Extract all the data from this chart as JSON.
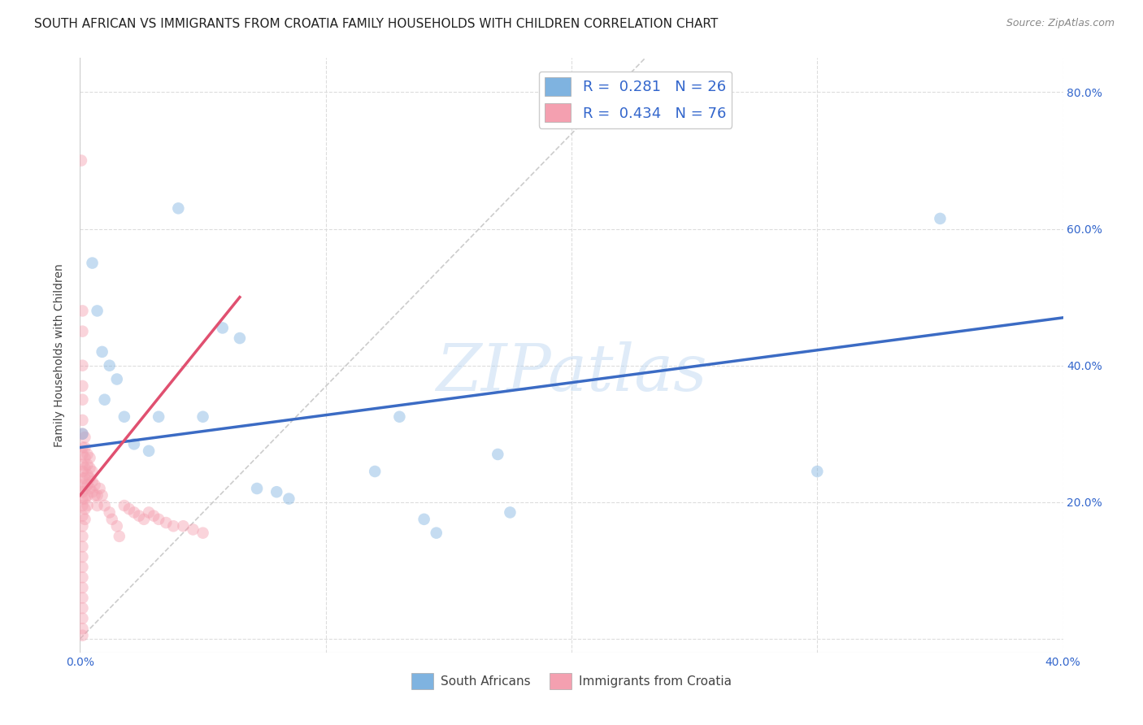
{
  "title": "SOUTH AFRICAN VS IMMIGRANTS FROM CROATIA FAMILY HOUSEHOLDS WITH CHILDREN CORRELATION CHART",
  "source": "Source: ZipAtlas.com",
  "ylabel": "Family Households with Children",
  "x_ticks": [
    0.0,
    0.1,
    0.2,
    0.3,
    0.4
  ],
  "x_tick_labels": [
    "0.0%",
    "",
    "",
    "",
    "40.0%"
  ],
  "y_ticks": [
    0.0,
    0.2,
    0.4,
    0.6,
    0.8
  ],
  "y_tick_labels": [
    "",
    "20.0%",
    "40.0%",
    "60.0%",
    "80.0%"
  ],
  "xlim": [
    0.0,
    0.4
  ],
  "ylim": [
    -0.02,
    0.85
  ],
  "blue_scatter": [
    [
      0.001,
      0.3
    ],
    [
      0.005,
      0.55
    ],
    [
      0.007,
      0.48
    ],
    [
      0.009,
      0.42
    ],
    [
      0.01,
      0.35
    ],
    [
      0.012,
      0.4
    ],
    [
      0.015,
      0.38
    ],
    [
      0.018,
      0.325
    ],
    [
      0.022,
      0.285
    ],
    [
      0.028,
      0.275
    ],
    [
      0.032,
      0.325
    ],
    [
      0.04,
      0.63
    ],
    [
      0.05,
      0.325
    ],
    [
      0.058,
      0.455
    ],
    [
      0.065,
      0.44
    ],
    [
      0.072,
      0.22
    ],
    [
      0.08,
      0.215
    ],
    [
      0.085,
      0.205
    ],
    [
      0.12,
      0.245
    ],
    [
      0.13,
      0.325
    ],
    [
      0.14,
      0.175
    ],
    [
      0.145,
      0.155
    ],
    [
      0.17,
      0.27
    ],
    [
      0.175,
      0.185
    ],
    [
      0.3,
      0.245
    ],
    [
      0.35,
      0.615
    ]
  ],
  "pink_scatter": [
    [
      0.0005,
      0.7
    ],
    [
      0.001,
      0.48
    ],
    [
      0.001,
      0.45
    ],
    [
      0.001,
      0.4
    ],
    [
      0.001,
      0.37
    ],
    [
      0.001,
      0.35
    ],
    [
      0.001,
      0.32
    ],
    [
      0.001,
      0.3
    ],
    [
      0.001,
      0.28
    ],
    [
      0.001,
      0.27
    ],
    [
      0.001,
      0.255
    ],
    [
      0.001,
      0.245
    ],
    [
      0.001,
      0.235
    ],
    [
      0.001,
      0.225
    ],
    [
      0.001,
      0.215
    ],
    [
      0.001,
      0.205
    ],
    [
      0.001,
      0.195
    ],
    [
      0.001,
      0.18
    ],
    [
      0.001,
      0.165
    ],
    [
      0.001,
      0.15
    ],
    [
      0.001,
      0.135
    ],
    [
      0.001,
      0.12
    ],
    [
      0.001,
      0.105
    ],
    [
      0.001,
      0.09
    ],
    [
      0.001,
      0.075
    ],
    [
      0.001,
      0.06
    ],
    [
      0.001,
      0.045
    ],
    [
      0.001,
      0.03
    ],
    [
      0.001,
      0.015
    ],
    [
      0.001,
      0.005
    ],
    [
      0.002,
      0.295
    ],
    [
      0.002,
      0.28
    ],
    [
      0.002,
      0.265
    ],
    [
      0.002,
      0.25
    ],
    [
      0.002,
      0.235
    ],
    [
      0.002,
      0.22
    ],
    [
      0.002,
      0.205
    ],
    [
      0.002,
      0.19
    ],
    [
      0.002,
      0.175
    ],
    [
      0.003,
      0.27
    ],
    [
      0.003,
      0.255
    ],
    [
      0.003,
      0.24
    ],
    [
      0.003,
      0.225
    ],
    [
      0.003,
      0.21
    ],
    [
      0.003,
      0.195
    ],
    [
      0.004,
      0.265
    ],
    [
      0.004,
      0.25
    ],
    [
      0.004,
      0.235
    ],
    [
      0.004,
      0.22
    ],
    [
      0.005,
      0.245
    ],
    [
      0.005,
      0.23
    ],
    [
      0.005,
      0.215
    ],
    [
      0.006,
      0.225
    ],
    [
      0.006,
      0.21
    ],
    [
      0.007,
      0.21
    ],
    [
      0.007,
      0.195
    ],
    [
      0.008,
      0.22
    ],
    [
      0.009,
      0.21
    ],
    [
      0.01,
      0.195
    ],
    [
      0.012,
      0.185
    ],
    [
      0.013,
      0.175
    ],
    [
      0.015,
      0.165
    ],
    [
      0.016,
      0.15
    ],
    [
      0.018,
      0.195
    ],
    [
      0.02,
      0.19
    ],
    [
      0.022,
      0.185
    ],
    [
      0.024,
      0.18
    ],
    [
      0.026,
      0.175
    ],
    [
      0.028,
      0.185
    ],
    [
      0.03,
      0.18
    ],
    [
      0.032,
      0.175
    ],
    [
      0.035,
      0.17
    ],
    [
      0.038,
      0.165
    ],
    [
      0.042,
      0.165
    ],
    [
      0.046,
      0.16
    ],
    [
      0.05,
      0.155
    ]
  ],
  "blue_line_x": [
    0.0,
    0.4
  ],
  "blue_line_y": [
    0.28,
    0.47
  ],
  "pink_line_x": [
    0.0,
    0.065
  ],
  "pink_line_y": [
    0.21,
    0.5
  ],
  "ref_line_x": [
    0.0,
    0.23
  ],
  "ref_line_y": [
    0.0,
    0.85
  ],
  "scatter_size": 110,
  "scatter_alpha": 0.45,
  "blue_color": "#7fb3e0",
  "pink_color": "#f4a0b0",
  "blue_line_color": "#3b6bc4",
  "pink_line_color": "#e05070",
  "ref_line_color": "#cccccc",
  "grid_color": "#dddddd",
  "bg_color": "#ffffff",
  "title_fontsize": 11,
  "axis_label_fontsize": 10,
  "tick_fontsize": 10,
  "source_fontsize": 9,
  "legend_label_0": "R =  0.281   N = 26",
  "legend_label_1": "R =  0.434   N = 76",
  "watermark": "ZIPatlas",
  "bottom_legend_labels": [
    "South Africans",
    "Immigrants from Croatia"
  ]
}
